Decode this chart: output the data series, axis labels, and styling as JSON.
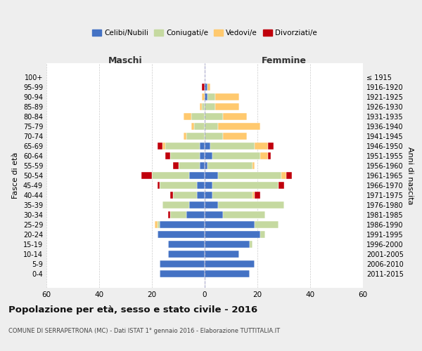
{
  "age_groups": [
    "100+",
    "95-99",
    "90-94",
    "85-89",
    "80-84",
    "75-79",
    "70-74",
    "65-69",
    "60-64",
    "55-59",
    "50-54",
    "45-49",
    "40-44",
    "35-39",
    "30-34",
    "25-29",
    "20-24",
    "15-19",
    "10-14",
    "5-9",
    "0-4"
  ],
  "birth_years": [
    "≤ 1915",
    "1916-1920",
    "1921-1925",
    "1926-1930",
    "1931-1935",
    "1936-1940",
    "1941-1945",
    "1946-1950",
    "1951-1955",
    "1956-1960",
    "1961-1965",
    "1966-1970",
    "1971-1975",
    "1976-1980",
    "1981-1985",
    "1986-1990",
    "1991-1995",
    "1996-2000",
    "2001-2005",
    "2006-2010",
    "2011-2015"
  ],
  "male": {
    "celibi": [
      0,
      0,
      0,
      0,
      0,
      0,
      0,
      2,
      2,
      2,
      6,
      3,
      3,
      6,
      7,
      17,
      18,
      14,
      14,
      17,
      17
    ],
    "coniugati": [
      0,
      0,
      0,
      1,
      5,
      4,
      7,
      13,
      11,
      8,
      14,
      14,
      9,
      10,
      6,
      1,
      0,
      0,
      0,
      0,
      0
    ],
    "vedovi": [
      0,
      0,
      1,
      1,
      3,
      1,
      1,
      1,
      0,
      0,
      0,
      0,
      0,
      0,
      0,
      1,
      0,
      0,
      0,
      0,
      0
    ],
    "divorziati": [
      0,
      1,
      0,
      0,
      0,
      0,
      0,
      2,
      2,
      2,
      4,
      1,
      1,
      0,
      1,
      0,
      0,
      0,
      0,
      0,
      0
    ]
  },
  "female": {
    "nubili": [
      0,
      1,
      1,
      0,
      0,
      0,
      0,
      2,
      3,
      1,
      5,
      3,
      3,
      5,
      7,
      19,
      21,
      17,
      13,
      19,
      17
    ],
    "coniugate": [
      0,
      0,
      3,
      4,
      7,
      5,
      7,
      17,
      18,
      17,
      24,
      25,
      15,
      25,
      16,
      9,
      2,
      1,
      0,
      0,
      0
    ],
    "vedove": [
      0,
      1,
      9,
      9,
      9,
      16,
      9,
      5,
      3,
      1,
      2,
      0,
      1,
      0,
      0,
      0,
      0,
      0,
      0,
      0,
      0
    ],
    "divorziate": [
      0,
      0,
      0,
      0,
      0,
      0,
      0,
      2,
      1,
      0,
      2,
      2,
      2,
      0,
      0,
      0,
      0,
      0,
      0,
      0,
      0
    ]
  },
  "colors": {
    "celibi": "#4472c4",
    "coniugati": "#c5d9a0",
    "vedovi": "#ffc96e",
    "divorziati": "#c0000c"
  },
  "xlim": 60,
  "title": "Popolazione per età, sesso e stato civile - 2016",
  "subtitle": "COMUNE DI SERRAPETRONA (MC) - Dati ISTAT 1° gennaio 2016 - Elaborazione TUTTITALIA.IT",
  "ylabel_left": "Fasce di età",
  "ylabel_right": "Anni di nascita",
  "xlabel_left": "Maschi",
  "xlabel_right": "Femmine",
  "bg_color": "#eeeeee",
  "plot_bg": "#ffffff"
}
